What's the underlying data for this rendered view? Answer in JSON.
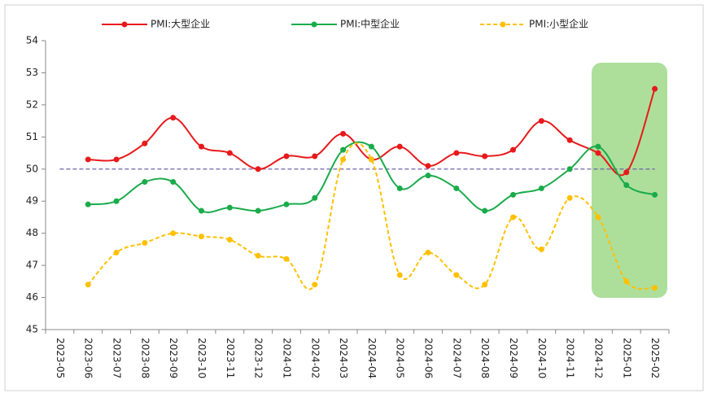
{
  "chart_data": {
    "type": "line",
    "categories": [
      "2023-05",
      "2023-06",
      "2023-07",
      "2023-08",
      "2023-09",
      "2023-10",
      "2023-11",
      "2023-12",
      "2024-01",
      "2024-02",
      "2024-03",
      "2024-04",
      "2024-05",
      "2024-06",
      "2024-07",
      "2024-08",
      "2024-09",
      "2024-10",
      "2024-11",
      "2024-12",
      "2025-01",
      "2025-02"
    ],
    "series": [
      {
        "name": "PMI:大型企业",
        "color": "#e8191b",
        "dash": false,
        "values": [
          null,
          50.3,
          50.3,
          50.8,
          51.6,
          50.7,
          50.5,
          50.0,
          50.4,
          50.4,
          51.1,
          50.3,
          50.7,
          50.1,
          50.5,
          50.4,
          50.6,
          51.5,
          50.9,
          50.5,
          49.9,
          52.5
        ]
      },
      {
        "name": "PMI:中型企业",
        "color": "#1aab4b",
        "dash": false,
        "values": [
          null,
          48.9,
          49.0,
          49.6,
          49.6,
          48.7,
          48.8,
          48.7,
          48.9,
          49.1,
          50.6,
          50.7,
          49.4,
          49.8,
          49.4,
          48.7,
          49.2,
          49.4,
          50.0,
          50.7,
          49.5,
          49.2
        ]
      },
      {
        "name": "PMI:小型企业",
        "color": "#ffc000",
        "dash": true,
        "values": [
          null,
          46.4,
          47.4,
          47.7,
          48.0,
          47.9,
          47.8,
          47.3,
          47.2,
          46.4,
          50.3,
          50.3,
          46.7,
          47.4,
          46.7,
          46.4,
          48.5,
          47.5,
          49.1,
          48.5,
          46.5,
          46.3
        ]
      }
    ],
    "ylim": [
      45,
      54
    ],
    "yticks": [
      45,
      46,
      47,
      48,
      49,
      50,
      51,
      52,
      53,
      54
    ],
    "reference_line": 50,
    "reference_color": "#7060a8",
    "grid": false
  }
}
